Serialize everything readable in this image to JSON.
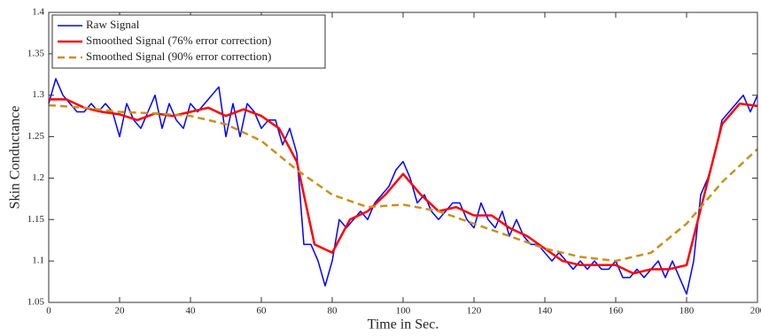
{
  "chart_data": {
    "type": "line",
    "xlabel": "Time in Sec.",
    "ylabel": "Skin Conductance",
    "xlim": [
      0,
      200
    ],
    "ylim": [
      1.05,
      1.4
    ],
    "xticks": [
      0,
      20,
      40,
      60,
      80,
      100,
      120,
      140,
      160,
      180,
      200
    ],
    "yticks": [
      1.05,
      1.1,
      1.15,
      1.2,
      1.25,
      1.3,
      1.35,
      1.4
    ],
    "legend": "upper left",
    "series": [
      {
        "name": "Raw Signal",
        "color": "#0000ff",
        "dash": false,
        "width": 1.5,
        "x": [
          0,
          2,
          4,
          6,
          8,
          10,
          12,
          14,
          16,
          18,
          20,
          22,
          24,
          26,
          28,
          30,
          32,
          34,
          36,
          38,
          40,
          42,
          44,
          46,
          48,
          50,
          52,
          54,
          56,
          58,
          60,
          62,
          64,
          66,
          68,
          70,
          72,
          74,
          76,
          78,
          80,
          82,
          84,
          86,
          88,
          90,
          92,
          94,
          96,
          98,
          100,
          102,
          104,
          106,
          108,
          110,
          112,
          114,
          116,
          118,
          120,
          122,
          124,
          126,
          128,
          130,
          132,
          134,
          136,
          138,
          140,
          142,
          144,
          146,
          148,
          150,
          152,
          154,
          156,
          158,
          160,
          162,
          164,
          166,
          168,
          170,
          172,
          174,
          176,
          178,
          180,
          182,
          184,
          186,
          188,
          190,
          192,
          194,
          196,
          198,
          200
        ],
        "values": [
          1.29,
          1.32,
          1.3,
          1.29,
          1.28,
          1.28,
          1.29,
          1.28,
          1.29,
          1.28,
          1.25,
          1.29,
          1.27,
          1.26,
          1.28,
          1.3,
          1.26,
          1.29,
          1.27,
          1.26,
          1.29,
          1.28,
          1.29,
          1.3,
          1.31,
          1.25,
          1.29,
          1.25,
          1.29,
          1.28,
          1.26,
          1.27,
          1.27,
          1.24,
          1.26,
          1.23,
          1.12,
          1.12,
          1.1,
          1.07,
          1.1,
          1.15,
          1.14,
          1.15,
          1.16,
          1.15,
          1.17,
          1.18,
          1.19,
          1.21,
          1.22,
          1.2,
          1.17,
          1.18,
          1.16,
          1.15,
          1.16,
          1.17,
          1.17,
          1.15,
          1.14,
          1.17,
          1.15,
          1.14,
          1.16,
          1.13,
          1.15,
          1.13,
          1.12,
          1.12,
          1.11,
          1.1,
          1.11,
          1.1,
          1.09,
          1.1,
          1.09,
          1.1,
          1.09,
          1.09,
          1.1,
          1.08,
          1.08,
          1.09,
          1.08,
          1.09,
          1.1,
          1.08,
          1.1,
          1.08,
          1.06,
          1.1,
          1.18,
          1.2,
          1.23,
          1.27,
          1.28,
          1.29,
          1.3,
          1.28,
          1.3
        ]
      },
      {
        "name": "Smoothed Signal (76% error correction)",
        "color": "#ff0000",
        "dash": false,
        "width": 2.5,
        "x": [
          0,
          5,
          10,
          15,
          20,
          25,
          30,
          35,
          40,
          45,
          50,
          55,
          60,
          65,
          70,
          75,
          80,
          85,
          90,
          95,
          100,
          105,
          110,
          115,
          120,
          125,
          130,
          135,
          140,
          145,
          150,
          155,
          160,
          165,
          170,
          175,
          180,
          185,
          190,
          195,
          200
        ],
        "values": [
          1.295,
          1.295,
          1.285,
          1.28,
          1.277,
          1.27,
          1.278,
          1.275,
          1.28,
          1.285,
          1.275,
          1.283,
          1.275,
          1.26,
          1.22,
          1.12,
          1.11,
          1.15,
          1.16,
          1.18,
          1.205,
          1.18,
          1.16,
          1.165,
          1.155,
          1.155,
          1.14,
          1.13,
          1.115,
          1.1,
          1.095,
          1.095,
          1.095,
          1.085,
          1.09,
          1.09,
          1.095,
          1.18,
          1.265,
          1.29,
          1.287
        ]
      },
      {
        "name": "Smoothed Signal (90% error correction)",
        "color": "#c8901e",
        "dash": true,
        "width": 2.5,
        "x": [
          0,
          10,
          20,
          30,
          40,
          50,
          60,
          70,
          80,
          90,
          100,
          110,
          120,
          130,
          140,
          150,
          160,
          170,
          180,
          190,
          200
        ],
        "values": [
          1.288,
          1.285,
          1.28,
          1.278,
          1.275,
          1.265,
          1.245,
          1.21,
          1.18,
          1.165,
          1.168,
          1.16,
          1.145,
          1.13,
          1.115,
          1.105,
          1.1,
          1.11,
          1.145,
          1.195,
          1.235
        ]
      }
    ]
  }
}
